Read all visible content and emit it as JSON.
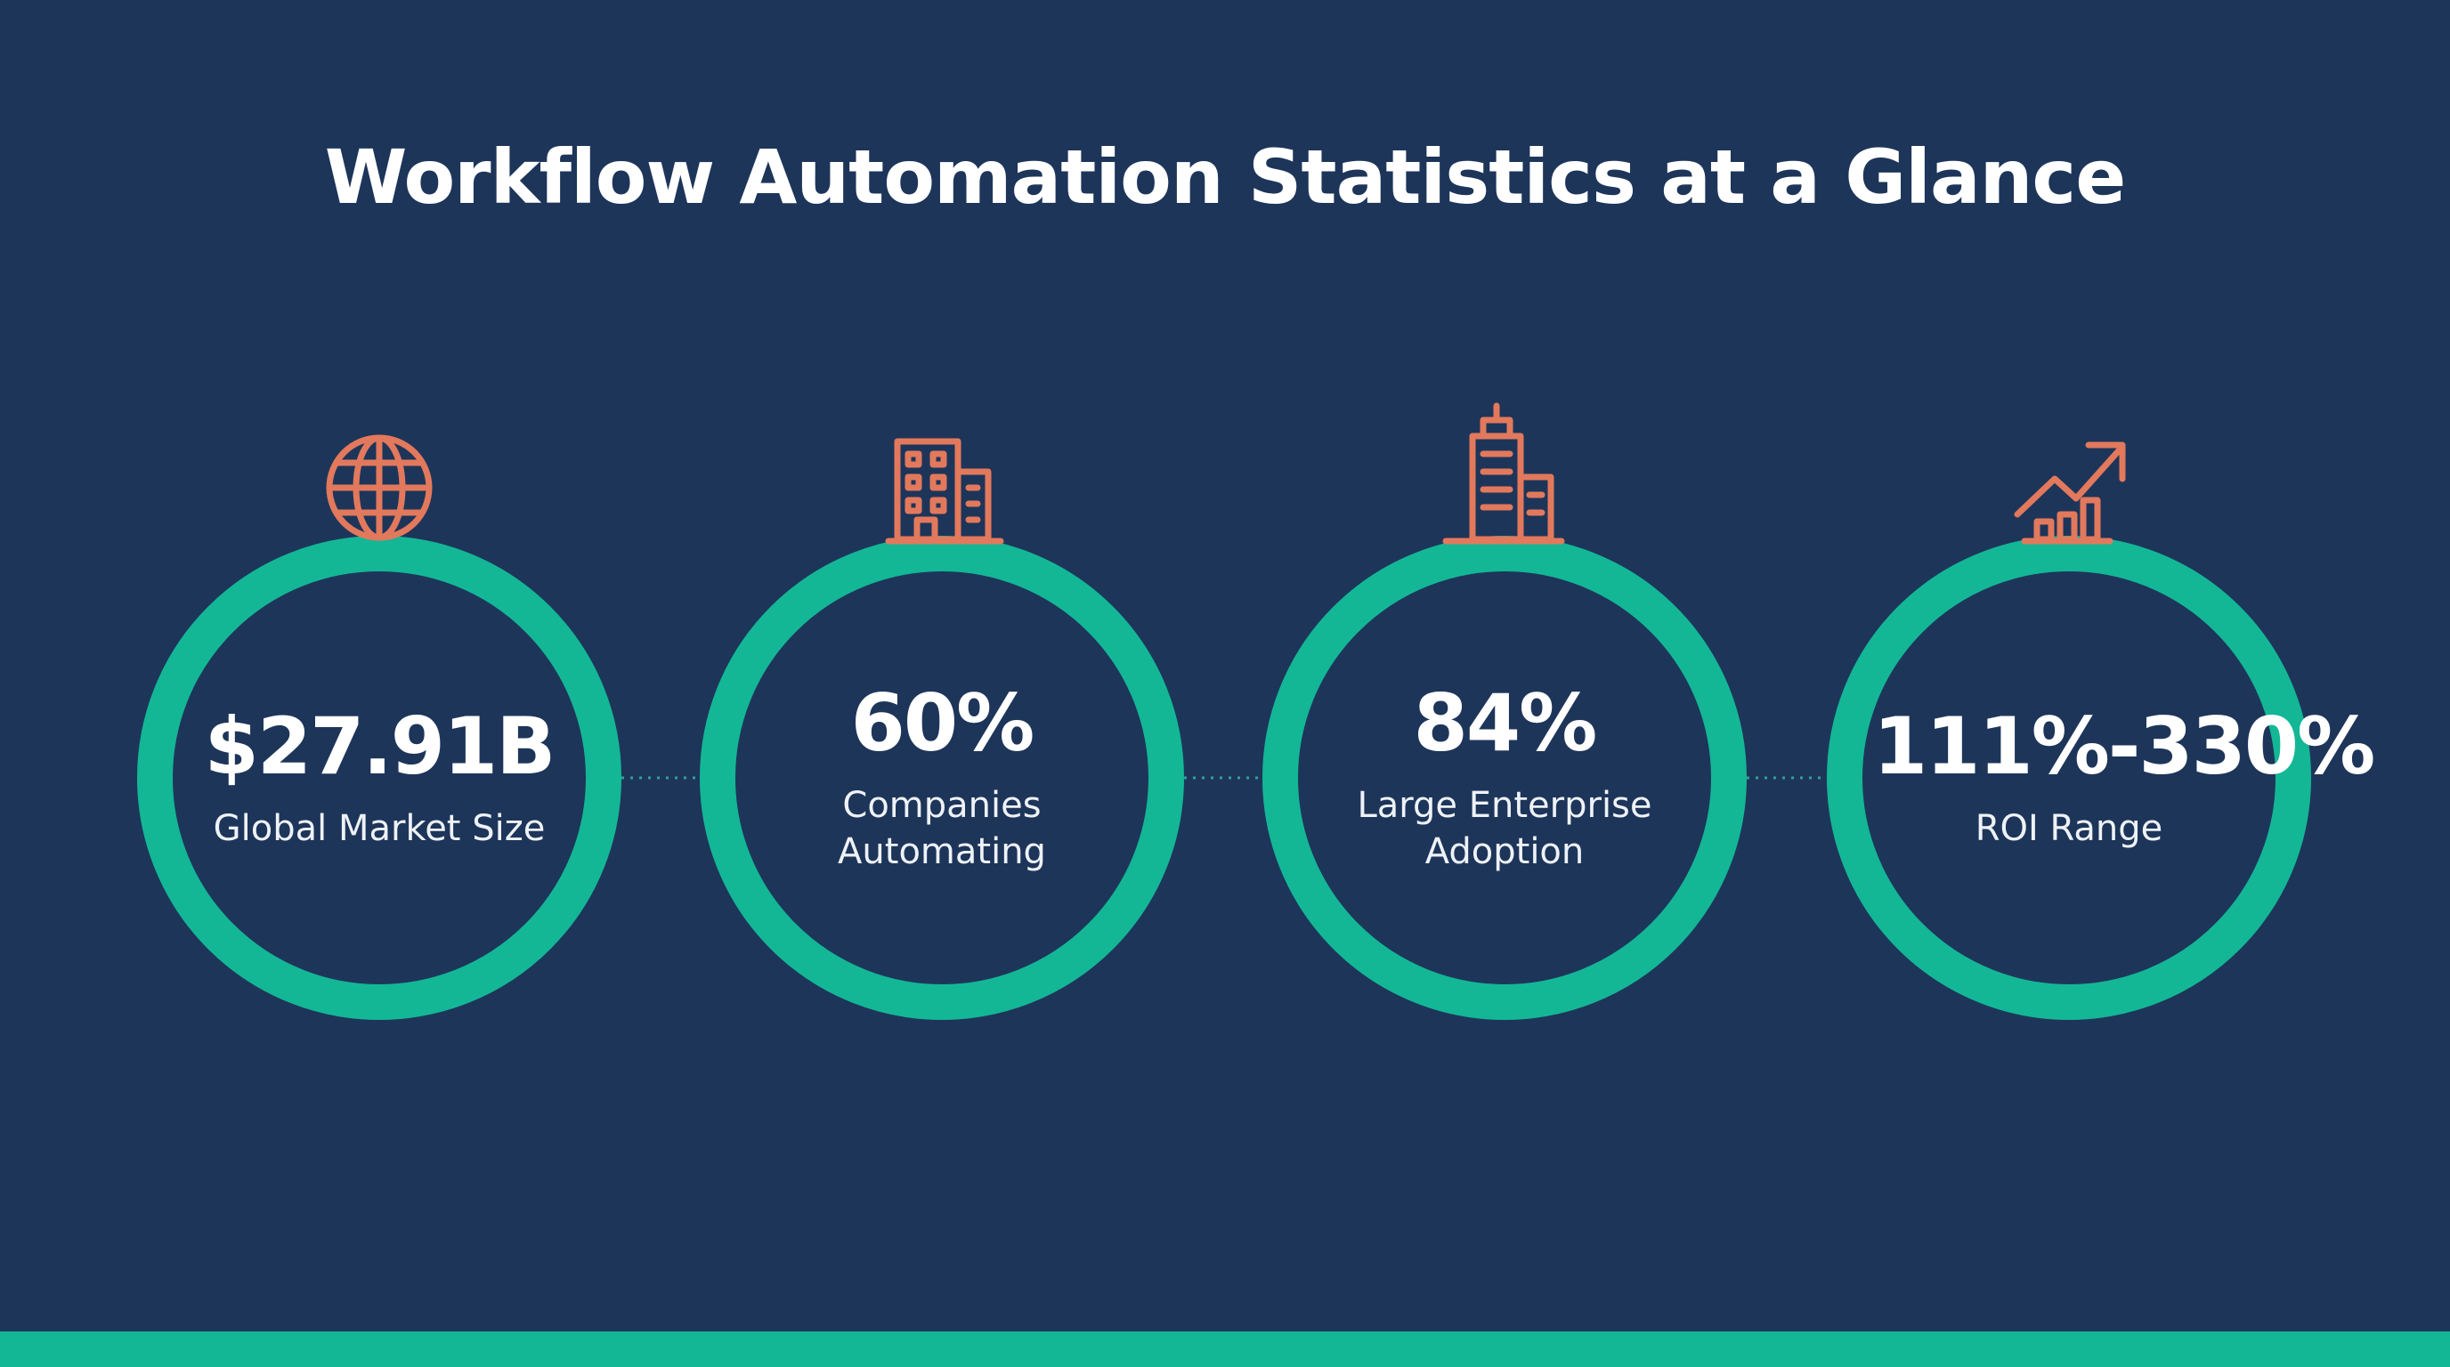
{
  "header": {
    "title": "Workflow Automation Statistics at a Glance"
  },
  "stats": [
    {
      "value": "$27.91B",
      "label_lines": [
        "Global Market Size"
      ]
    },
    {
      "value": "60%",
      "label_lines": [
        "Companies",
        "Automating"
      ]
    },
    {
      "value": "84%",
      "label_lines": [
        "Large Enterprise",
        "Adoption"
      ]
    },
    {
      "value": "111%-330%",
      "label_lines": [
        "ROI Range"
      ]
    }
  ]
}
